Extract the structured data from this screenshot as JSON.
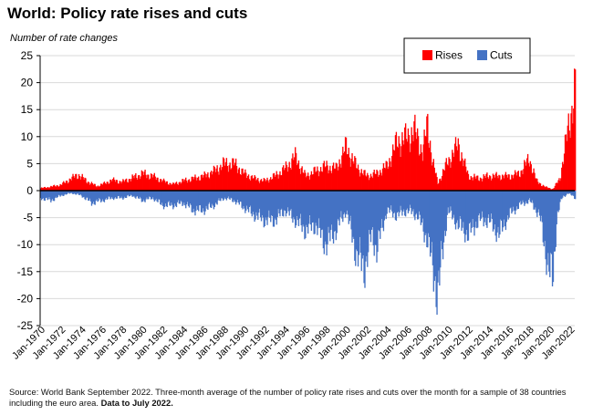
{
  "chart_data": {
    "type": "bar",
    "title": "World: Policy rate rises and cuts",
    "ylabel": "Number of rate changes",
    "xlabel": "",
    "ylim": [
      -25,
      25
    ],
    "yticks": [
      25,
      20,
      15,
      10,
      5,
      0,
      -5,
      -10,
      -15,
      -20,
      -25
    ],
    "x_tick_labels": [
      "Jan-1970",
      "Jan-1972",
      "Jan-1974",
      "Jan-1976",
      "Jan-1978",
      "Jan-1980",
      "Jan-1982",
      "Jan-1984",
      "Jan-1986",
      "Jan-1988",
      "Jan-1990",
      "Jan-1992",
      "Jan-1994",
      "Jan-1996",
      "Jan-1998",
      "Jan-2000",
      "Jan-2002",
      "Jan-2004",
      "Jan-2006",
      "Jan-2008",
      "Jan-2010",
      "Jan-2012",
      "Jan-2014",
      "Jan-2016",
      "Jan-2018",
      "Jan-2020",
      "Jan-2022"
    ],
    "x_range_years": [
      1970,
      2022.5
    ],
    "grid": true,
    "legend": "top-right",
    "series": [
      {
        "name": "Rises",
        "color": "#ff0000",
        "points": [
          [
            1970,
            0.5
          ],
          [
            1971,
            0.8
          ],
          [
            1972,
            1.2
          ],
          [
            1973,
            2.5
          ],
          [
            1973.7,
            3.3
          ],
          [
            1974.5,
            2.0
          ],
          [
            1975.5,
            0.9
          ],
          [
            1976.3,
            1.5
          ],
          [
            1977,
            2.2
          ],
          [
            1978,
            1.8
          ],
          [
            1979,
            2.6
          ],
          [
            1980,
            3.5
          ],
          [
            1981,
            3.0
          ],
          [
            1982,
            2.0
          ],
          [
            1983,
            1.3
          ],
          [
            1984,
            2.0
          ],
          [
            1985,
            2.5
          ],
          [
            1986,
            3.0
          ],
          [
            1987,
            4.0
          ],
          [
            1988,
            5.5
          ],
          [
            1989,
            5.5
          ],
          [
            1990,
            3.5
          ],
          [
            1991,
            2.5
          ],
          [
            1992,
            2.0
          ],
          [
            1993,
            3.0
          ],
          [
            1994,
            4.5
          ],
          [
            1995,
            7.0
          ],
          [
            1996,
            3.0
          ],
          [
            1997,
            4.0
          ],
          [
            1998,
            5.0
          ],
          [
            1999,
            4.5
          ],
          [
            2000,
            9.0
          ],
          [
            2001,
            5.0
          ],
          [
            2002,
            3.0
          ],
          [
            2003,
            3.5
          ],
          [
            2004,
            5.0
          ],
          [
            2005,
            10.0
          ],
          [
            2006,
            11.0
          ],
          [
            2006.7,
            12.5
          ],
          [
            2007.5,
            8.0
          ],
          [
            2008,
            13.5
          ],
          [
            2008.5,
            6.0
          ],
          [
            2009,
            1.5
          ],
          [
            2010,
            6.0
          ],
          [
            2011,
            9.5
          ],
          [
            2012,
            3.0
          ],
          [
            2013,
            2.5
          ],
          [
            2014,
            3.0
          ],
          [
            2015,
            3.0
          ],
          [
            2016,
            3.0
          ],
          [
            2017,
            3.5
          ],
          [
            2018,
            6.5
          ],
          [
            2018.7,
            2.0
          ],
          [
            2019.5,
            0.8
          ],
          [
            2020.3,
            0.3
          ],
          [
            2021,
            2.5
          ],
          [
            2021.5,
            9.0
          ],
          [
            2022,
            15.0
          ],
          [
            2022.5,
            21.5
          ]
        ]
      },
      {
        "name": "Cuts",
        "color": "#4472c4",
        "points": [
          [
            1970,
            -1.5
          ],
          [
            1971,
            -2.0
          ],
          [
            1972,
            -1.0
          ],
          [
            1973,
            -0.5
          ],
          [
            1974,
            -1.0
          ],
          [
            1975,
            -2.5
          ],
          [
            1976,
            -2.0
          ],
          [
            1977,
            -1.5
          ],
          [
            1978,
            -1.5
          ],
          [
            1979,
            -1.0
          ],
          [
            1980,
            -2.0
          ],
          [
            1981,
            -1.5
          ],
          [
            1982,
            -3.0
          ],
          [
            1983,
            -3.0
          ],
          [
            1984,
            -2.5
          ],
          [
            1985,
            -4.0
          ],
          [
            1986,
            -4.0
          ],
          [
            1987,
            -3.0
          ],
          [
            1988,
            -1.5
          ],
          [
            1989,
            -2.0
          ],
          [
            1990,
            -3.5
          ],
          [
            1991,
            -5.0
          ],
          [
            1992,
            -6.0
          ],
          [
            1993,
            -6.0
          ],
          [
            1994,
            -4.0
          ],
          [
            1995,
            -6.0
          ],
          [
            1996,
            -8.0
          ],
          [
            1997,
            -7.0
          ],
          [
            1998,
            -11.0
          ],
          [
            1999,
            -8.0
          ],
          [
            2000,
            -4.0
          ],
          [
            2001,
            -13.0
          ],
          [
            2001.8,
            -16.0
          ],
          [
            2002.5,
            -9.0
          ],
          [
            2003,
            -12.0
          ],
          [
            2004,
            -4.0
          ],
          [
            2005,
            -5.0
          ],
          [
            2006,
            -4.0
          ],
          [
            2007,
            -5.0
          ],
          [
            2008,
            -10.0
          ],
          [
            2009,
            -21.5
          ],
          [
            2009.6,
            -10.0
          ],
          [
            2010,
            -4.0
          ],
          [
            2011,
            -7.0
          ],
          [
            2012,
            -9.0
          ],
          [
            2013,
            -6.0
          ],
          [
            2014,
            -6.0
          ],
          [
            2015,
            -9.0
          ],
          [
            2016,
            -5.0
          ],
          [
            2017,
            -3.0
          ],
          [
            2018,
            -2.0
          ],
          [
            2019,
            -5.0
          ],
          [
            2019.6,
            -13.0
          ],
          [
            2020.3,
            -19.0
          ],
          [
            2020.7,
            -5.0
          ],
          [
            2021.2,
            -1.5
          ],
          [
            2021.8,
            -0.5
          ],
          [
            2022.5,
            -1.5
          ]
        ]
      }
    ]
  },
  "footer": {
    "source": "Source: World Bank September 2022. Three-month average of the number of policy rate rises and cuts over the month for a sample of 38 countries including the euro area.",
    "source_bold": "Data to July 2022."
  }
}
